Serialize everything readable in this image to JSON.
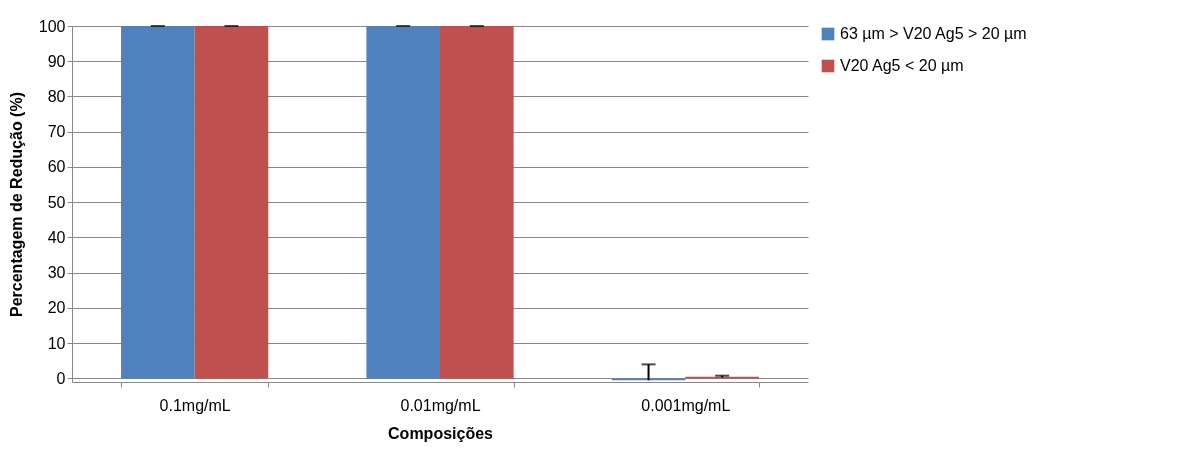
{
  "chart_data": {
    "type": "bar",
    "xlabel": "Composições",
    "ylabel": "Percentagem de Redução (%)",
    "categories": [
      "0.1mg/mL",
      "0.01mg/mL",
      "0.001mg/mL"
    ],
    "series": [
      {
        "name": "63 µm > V20 Ag5 > 20 µm",
        "color": "#4f81bd",
        "values": [
          100,
          100,
          -0.5
        ],
        "errors": [
          [
            100,
            100
          ],
          [
            100,
            100
          ],
          [
            -0.5,
            4
          ]
        ]
      },
      {
        "name": "V20 Ag5 < 20 µm",
        "color": "#c0504d",
        "values": [
          100,
          100,
          0.5
        ],
        "errors": [
          [
            100,
            100
          ],
          [
            100,
            100
          ],
          [
            0.3,
            0.8
          ]
        ]
      }
    ],
    "ylim": [
      -1,
      100
    ],
    "yticks": [
      0,
      10,
      20,
      30,
      40,
      50,
      60,
      70,
      80,
      90,
      100
    ],
    "grid": "y",
    "legend": "right"
  }
}
